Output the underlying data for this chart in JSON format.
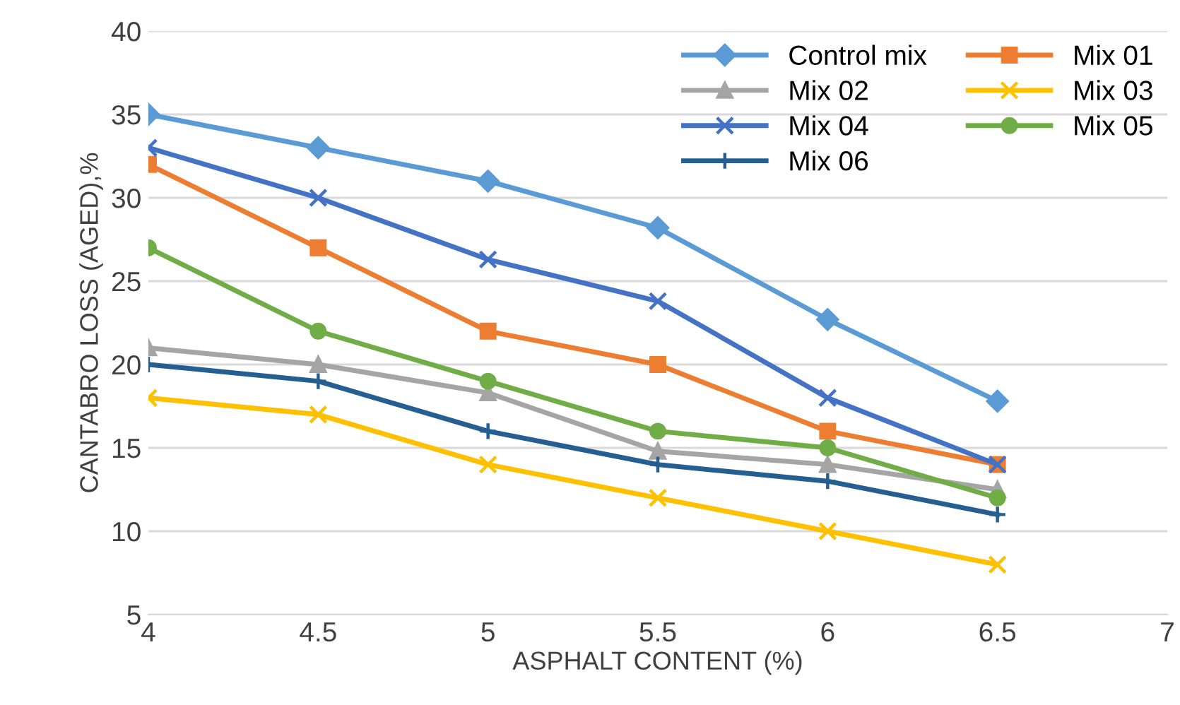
{
  "chart_data": {
    "type": "line",
    "xlabel": "ASPHALT CONTENT (%)",
    "ylabel": "CANTABRO LOSS (AGED),%",
    "x": [
      4,
      4.5,
      5,
      5.5,
      6,
      6.5
    ],
    "xlim": [
      4,
      7
    ],
    "xticks": [
      4,
      4.5,
      5,
      5.5,
      6,
      6.5,
      7
    ],
    "ylim": [
      5,
      40
    ],
    "yticks": [
      5,
      10,
      15,
      20,
      25,
      30,
      35,
      40
    ],
    "grid": "y",
    "legend": "top right",
    "line_style": "solid",
    "series": [
      {
        "name": "Control mix",
        "color": "#5b9bd5",
        "marker": "diamond",
        "values": [
          35,
          33,
          31,
          28.2,
          22.7,
          17.8
        ]
      },
      {
        "name": "Mix 01",
        "color": "#ed7d31",
        "marker": "square",
        "values": [
          32,
          27,
          22,
          20,
          16,
          14
        ]
      },
      {
        "name": "Mix 02",
        "color": "#a5a5a5",
        "marker": "triangle",
        "values": [
          21,
          20,
          18.3,
          14.8,
          14,
          12.5
        ]
      },
      {
        "name": "Mix 03",
        "color": "#ffc000",
        "marker": "cross",
        "values": [
          18,
          17,
          14,
          12,
          10,
          8
        ]
      },
      {
        "name": "Mix 04",
        "color": "#4472c4",
        "marker": "cross",
        "values": [
          33,
          30,
          26.3,
          23.8,
          18,
          14
        ]
      },
      {
        "name": "Mix 05",
        "color": "#70ad47",
        "marker": "circle",
        "values": [
          27,
          22,
          19,
          16,
          15,
          12
        ]
      },
      {
        "name": "Mix 06",
        "color": "#255e91",
        "marker": "plus",
        "values": [
          20,
          19,
          16,
          14,
          13,
          11
        ]
      }
    ]
  }
}
